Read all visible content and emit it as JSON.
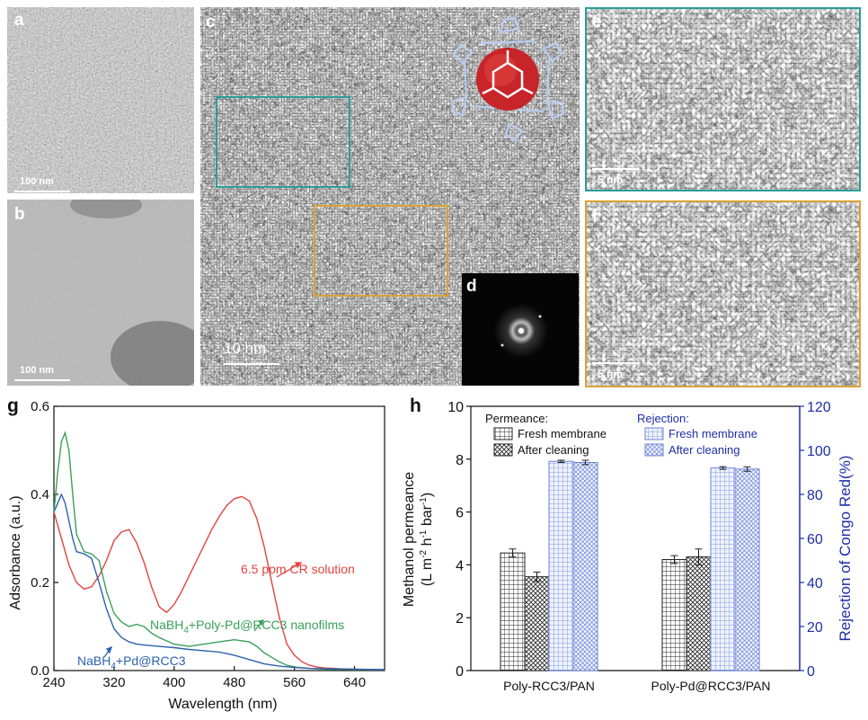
{
  "panels": {
    "a": {
      "label": "a",
      "scale": "100 nm"
    },
    "b": {
      "label": "b",
      "scale": "100 nm"
    },
    "c": {
      "label": "c",
      "scale": "10  nm"
    },
    "d": {
      "label": "d"
    },
    "e": {
      "label": "e",
      "scale": "5 nm"
    },
    "f": {
      "label": "f",
      "scale": "5 nm"
    },
    "g": {
      "label": "g"
    },
    "h": {
      "label": "h"
    }
  },
  "colors": {
    "teal": "#2a9d99",
    "orange": "#d9a233",
    "red": "#e0443f",
    "green": "#3aa05a",
    "blue": "#2c62b0",
    "navy": "#1d2fa8"
  },
  "chart_data": [
    {
      "type": "line",
      "panel": "g",
      "xlabel": "Wavelength (nm)",
      "ylabel": "Adsorbance (a.u.)",
      "xlim": [
        240,
        680
      ],
      "ylim": [
        0,
        0.6
      ],
      "xticks": [
        240,
        320,
        400,
        480,
        560,
        640
      ],
      "yticks": [
        0.0,
        0.2,
        0.4,
        0.6
      ],
      "series": [
        {
          "name": "6.5 ppm CR solution",
          "color": "#e0443f",
          "x": [
            240,
            250,
            260,
            270,
            280,
            290,
            300,
            310,
            320,
            330,
            340,
            350,
            360,
            370,
            380,
            390,
            400,
            410,
            420,
            430,
            440,
            450,
            460,
            470,
            480,
            490,
            500,
            510,
            520,
            530,
            540,
            550,
            560,
            570,
            580,
            590,
            600,
            620,
            640,
            660,
            680
          ],
          "y": [
            0.36,
            0.3,
            0.24,
            0.2,
            0.185,
            0.19,
            0.215,
            0.25,
            0.295,
            0.315,
            0.32,
            0.29,
            0.245,
            0.19,
            0.145,
            0.132,
            0.15,
            0.18,
            0.215,
            0.25,
            0.285,
            0.32,
            0.35,
            0.375,
            0.39,
            0.395,
            0.385,
            0.345,
            0.28,
            0.2,
            0.12,
            0.06,
            0.035,
            0.02,
            0.012,
            0.008,
            0.006,
            0.004,
            0.003,
            0.002,
            0.002
          ]
        },
        {
          "name": "NaBH4+Poly-Pd@RCC3 nanofilms",
          "color": "#3aa05a",
          "x": [
            240,
            245,
            250,
            255,
            260,
            265,
            270,
            280,
            290,
            300,
            310,
            320,
            330,
            340,
            350,
            360,
            370,
            380,
            400,
            420,
            440,
            460,
            480,
            500,
            510,
            520,
            530,
            540,
            550,
            560,
            580,
            600,
            640,
            680
          ],
          "y": [
            0.36,
            0.45,
            0.52,
            0.54,
            0.5,
            0.4,
            0.31,
            0.27,
            0.265,
            0.25,
            0.18,
            0.13,
            0.11,
            0.1,
            0.105,
            0.1,
            0.085,
            0.075,
            0.06,
            0.055,
            0.06,
            0.065,
            0.07,
            0.065,
            0.055,
            0.04,
            0.03,
            0.02,
            0.012,
            0.008,
            0.005,
            0.003,
            0.002,
            0.002
          ]
        },
        {
          "name": "NaBH4+Pd@RCC3",
          "color": "#2c62b0",
          "x": [
            240,
            245,
            250,
            255,
            260,
            265,
            270,
            280,
            290,
            300,
            310,
            320,
            330,
            340,
            350,
            360,
            380,
            400,
            420,
            440,
            460,
            480,
            500,
            520,
            540,
            560,
            580,
            600,
            640,
            680
          ],
          "y": [
            0.36,
            0.38,
            0.4,
            0.38,
            0.34,
            0.3,
            0.27,
            0.265,
            0.255,
            0.2,
            0.14,
            0.095,
            0.075,
            0.065,
            0.06,
            0.058,
            0.055,
            0.052,
            0.048,
            0.045,
            0.042,
            0.035,
            0.025,
            0.015,
            0.01,
            0.007,
            0.005,
            0.004,
            0.003,
            0.002
          ]
        }
      ],
      "annotations": [
        {
          "text": "6.5 ppm CR solution",
          "color": "#e0443f"
        },
        {
          "text": "NaBH",
          "sub": "4",
          "rest": "+Poly-Pd@RCC3 nanofilms",
          "color": "#3aa05a"
        },
        {
          "text": "NaBH",
          "sub": "4",
          "rest": "+Pd@RCC3",
          "color": "#2c62b0"
        }
      ]
    },
    {
      "type": "bar",
      "panel": "h",
      "categories": [
        "Poly-RCC3/PAN",
        "Poly-Pd@RCC3/PAN"
      ],
      "ylabel_left_line1": "Methanol permeance",
      "ylabel_left_line2": {
        "a": "(L m",
        "b": "-2",
        "c": " h",
        "d": "-1",
        "e": " bar",
        "f": "-1",
        "g": ")"
      },
      "ylabel_right": "Rejection of Congo Red(%)",
      "ylim_left": [
        0,
        10
      ],
      "ylim_right": [
        0,
        120
      ],
      "yticks_left": [
        0,
        2,
        4,
        6,
        8,
        10
      ],
      "yticks_right": [
        0,
        20,
        40,
        60,
        80,
        100,
        120
      ],
      "legend": {
        "permeance_title": "Permeance:",
        "rejection_title": "Rejection:",
        "fresh": "Fresh membrane",
        "cleaning": "After cleaning"
      },
      "series": [
        {
          "name": "Fresh membrane",
          "group": "Permeance",
          "axis": "left",
          "values": [
            4.45,
            4.2
          ],
          "errors": [
            0.15,
            0.15
          ]
        },
        {
          "name": "After cleaning",
          "group": "Permeance",
          "axis": "left",
          "values": [
            3.55,
            4.3
          ],
          "errors": [
            0.18,
            0.3
          ]
        },
        {
          "name": "Fresh membrane",
          "group": "Rejection",
          "axis": "right",
          "values": [
            95,
            92
          ],
          "errors": [
            0.5,
            0.6
          ]
        },
        {
          "name": "After cleaning",
          "group": "Rejection",
          "axis": "right",
          "values": [
            94.5,
            91.5
          ],
          "errors": [
            1.0,
            1.0
          ]
        }
      ]
    }
  ]
}
